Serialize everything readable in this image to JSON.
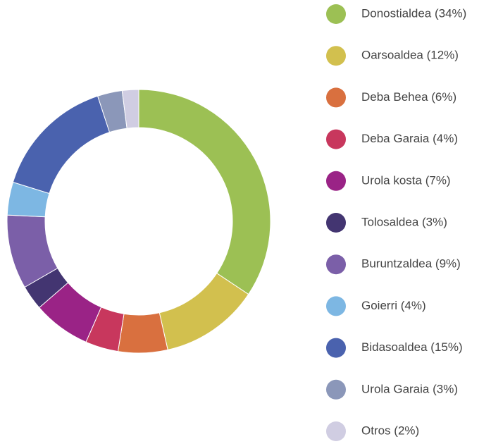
{
  "chart_data": {
    "type": "donut",
    "categories": [
      "Donostialdea (34%)",
      "Oarsoaldea (12%)",
      "Deba Behea (6%)",
      "Deba Garaia (4%)",
      "Urola kosta (7%)",
      "Tolosaldea (3%)",
      "Buruntzaldea (9%)",
      "Goierri (4%)",
      "Bidasoaldea (15%)",
      "Urola Garaia (3%)",
      "Otros (2%)"
    ],
    "values": [
      34,
      12,
      6,
      4,
      7,
      3,
      9,
      4,
      15,
      3,
      2
    ],
    "colors": [
      "#9cc054",
      "#d2c04e",
      "#d9703f",
      "#c8375d",
      "#9a2386",
      "#433571",
      "#7b5fa8",
      "#7db7e3",
      "#4a62ae",
      "#8b97b9",
      "#d0cde2"
    ],
    "legend": "right"
  }
}
